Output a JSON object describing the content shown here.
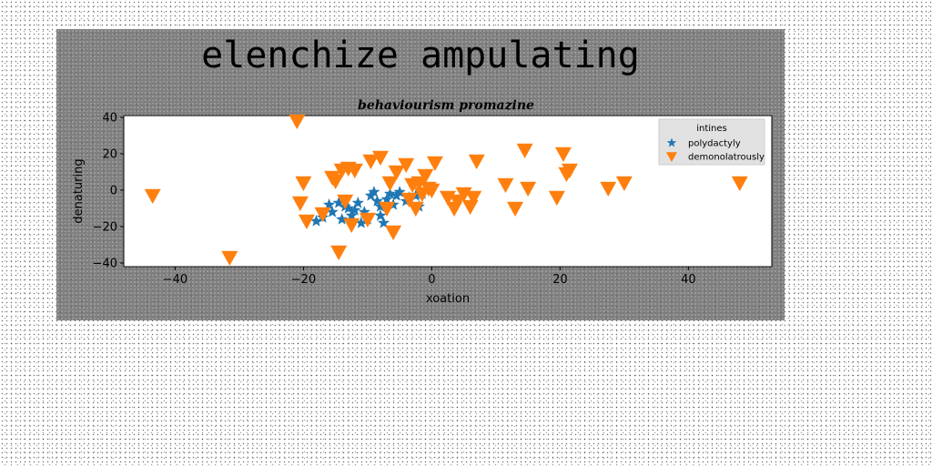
{
  "chart_data": {
    "type": "scatter",
    "title": "elenchize ampulating",
    "subtitle": "behaviourism promazine",
    "xlabel": "xoation",
    "ylabel": "denaturing",
    "xlim": [
      -48,
      53
    ],
    "ylim": [
      -42,
      41
    ],
    "xticks": [
      -40,
      -20,
      0,
      20,
      40
    ],
    "yticks": [
      -40,
      -20,
      0,
      20,
      40
    ],
    "grid": false,
    "legend": {
      "title": "intines",
      "placement": "top-right"
    },
    "series": [
      {
        "name": "polydactyly",
        "marker": "star",
        "color": "#1f77b4",
        "points": [
          [
            -18,
            -17
          ],
          [
            -17,
            -15
          ],
          [
            -16,
            -8
          ],
          [
            -15.5,
            -12
          ],
          [
            -14.5,
            -7
          ],
          [
            -14,
            -16
          ],
          [
            -13.5,
            -9
          ],
          [
            -13,
            -10
          ],
          [
            -12.5,
            -14
          ],
          [
            -12,
            -11
          ],
          [
            -11.5,
            -7
          ],
          [
            -11,
            -18
          ],
          [
            -10.5,
            -12
          ],
          [
            -10,
            -16
          ],
          [
            -9.5,
            -3
          ],
          [
            -9,
            -1
          ],
          [
            -8.5,
            -6
          ],
          [
            -8,
            -14
          ],
          [
            -7.5,
            -18
          ],
          [
            -7,
            -5
          ],
          [
            -6.5,
            -2
          ],
          [
            -6,
            -8
          ],
          [
            -5.5,
            -3
          ],
          [
            -5,
            -1
          ],
          [
            -4,
            -6
          ],
          [
            -3.5,
            -4
          ],
          [
            -2.5,
            -3
          ],
          [
            -2,
            -9
          ],
          [
            -1.5,
            -2
          ],
          [
            -8,
            -9
          ]
        ]
      },
      {
        "name": "demonolatrously",
        "marker": "triangle-down",
        "color": "#ff7f0e",
        "points": [
          [
            -43.5,
            -3
          ],
          [
            -31.5,
            -37
          ],
          [
            -21,
            38
          ],
          [
            -20.5,
            -7
          ],
          [
            -20,
            4
          ],
          [
            -19.5,
            -17
          ],
          [
            -17,
            -13
          ],
          [
            -15.5,
            7
          ],
          [
            -15,
            5
          ],
          [
            -14.5,
            -34
          ],
          [
            -14,
            11
          ],
          [
            -13.5,
            -6
          ],
          [
            -13,
            12
          ],
          [
            -12.5,
            -19
          ],
          [
            -12,
            11
          ],
          [
            -10,
            -16
          ],
          [
            -9.5,
            16
          ],
          [
            -8,
            18
          ],
          [
            -7,
            -10
          ],
          [
            -6.5,
            4
          ],
          [
            -6,
            -23
          ],
          [
            -5.5,
            10
          ],
          [
            -4,
            14
          ],
          [
            -3.5,
            -5
          ],
          [
            -3,
            3
          ],
          [
            -2.5,
            -10
          ],
          [
            -2,
            4
          ],
          [
            -1.5,
            -2
          ],
          [
            -1,
            8
          ],
          [
            -0.5,
            1
          ],
          [
            0,
            0
          ],
          [
            0.5,
            15
          ],
          [
            2.5,
            -4
          ],
          [
            3.5,
            -10
          ],
          [
            4,
            -6
          ],
          [
            5,
            -2
          ],
          [
            6,
            -9
          ],
          [
            6.5,
            -4
          ],
          [
            7,
            16
          ],
          [
            11.5,
            3
          ],
          [
            13,
            -10
          ],
          [
            14.5,
            22
          ],
          [
            15,
            1
          ],
          [
            19.5,
            -4
          ],
          [
            20.5,
            20
          ],
          [
            21,
            9
          ],
          [
            21.5,
            11
          ],
          [
            27.5,
            1
          ],
          [
            30,
            4
          ],
          [
            48,
            4
          ]
        ]
      }
    ]
  }
}
